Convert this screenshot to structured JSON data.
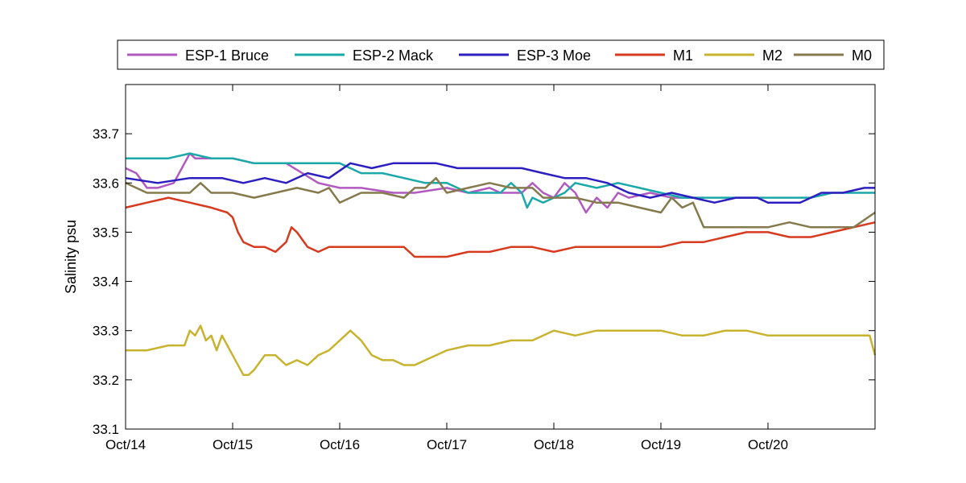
{
  "chart_data": {
    "type": "line",
    "title": "",
    "xlabel": "",
    "ylabel": "Salinity psu",
    "xlim": [
      0,
      7.0
    ],
    "ylim": [
      33.1,
      33.8
    ],
    "x_ticks": [
      {
        "value": 0,
        "label": "Oct/14"
      },
      {
        "value": 1,
        "label": "Oct/15"
      },
      {
        "value": 2,
        "label": "Oct/16"
      },
      {
        "value": 3,
        "label": "Oct/17"
      },
      {
        "value": 4,
        "label": "Oct/18"
      },
      {
        "value": 5,
        "label": "Oct/19"
      },
      {
        "value": 6,
        "label": "Oct/20"
      }
    ],
    "y_ticks": [
      {
        "value": 33.1,
        "label": "33.1"
      },
      {
        "value": 33.2,
        "label": "33.2"
      },
      {
        "value": 33.3,
        "label": "33.3"
      },
      {
        "value": 33.4,
        "label": "33.4"
      },
      {
        "value": 33.5,
        "label": "33.5"
      },
      {
        "value": 33.6,
        "label": "33.6"
      },
      {
        "value": 33.7,
        "label": "33.7"
      }
    ],
    "grid": false,
    "legend_position": "top (outside, horizontal)",
    "series": [
      {
        "name": "ESP-1 Bruce",
        "color": "#b05ac0",
        "x": [
          0.0,
          0.1,
          0.2,
          0.3,
          0.45,
          0.55,
          0.6,
          0.65,
          0.8,
          1.0,
          1.2,
          1.5,
          1.8,
          2.0,
          2.2,
          2.5,
          2.7,
          3.0,
          3.2,
          3.4,
          3.5,
          3.7,
          3.8,
          3.9,
          4.0,
          4.1,
          4.2,
          4.3,
          4.4,
          4.5,
          4.6,
          4.7,
          4.9,
          5.1,
          5.3,
          5.4
        ],
        "values": [
          33.63,
          33.62,
          33.59,
          33.59,
          33.6,
          33.64,
          33.66,
          33.65,
          33.65,
          33.65,
          33.64,
          33.64,
          33.6,
          33.59,
          33.59,
          33.58,
          33.58,
          33.59,
          33.58,
          33.59,
          33.58,
          33.58,
          33.6,
          33.58,
          33.57,
          33.6,
          33.58,
          33.54,
          33.57,
          33.55,
          33.58,
          33.57,
          33.58,
          33.57,
          33.57,
          33.57
        ]
      },
      {
        "name": "ESP-2 Mack",
        "color": "#1aa8a8",
        "x": [
          0.0,
          0.2,
          0.4,
          0.6,
          0.8,
          1.0,
          1.2,
          1.4,
          1.6,
          1.8,
          2.0,
          2.2,
          2.4,
          2.6,
          2.8,
          3.0,
          3.2,
          3.4,
          3.5,
          3.6,
          3.7,
          3.75,
          3.8,
          3.9,
          4.0,
          4.1,
          4.2,
          4.4,
          4.6,
          4.8,
          5.0,
          5.2,
          5.4,
          5.6,
          5.8,
          6.0,
          6.2,
          6.4,
          6.6,
          6.8,
          7.0
        ],
        "values": [
          33.65,
          33.65,
          33.65,
          33.66,
          33.65,
          33.65,
          33.64,
          33.64,
          33.64,
          33.64,
          33.64,
          33.62,
          33.62,
          33.61,
          33.6,
          33.6,
          33.58,
          33.58,
          33.58,
          33.6,
          33.58,
          33.55,
          33.57,
          33.56,
          33.57,
          33.58,
          33.6,
          33.59,
          33.6,
          33.59,
          33.58,
          33.57,
          33.57,
          33.57,
          33.57,
          33.57,
          33.57,
          33.57,
          33.58,
          33.58,
          33.58
        ]
      },
      {
        "name": "ESP-3 Moe",
        "color": "#2d1fbf",
        "x": [
          0.0,
          0.3,
          0.6,
          0.9,
          1.1,
          1.3,
          1.5,
          1.7,
          1.9,
          2.1,
          2.3,
          2.5,
          2.7,
          2.9,
          3.1,
          3.3,
          3.5,
          3.7,
          3.9,
          4.1,
          4.3,
          4.5,
          4.7,
          4.9,
          5.1,
          5.3,
          5.5,
          5.7,
          5.9,
          6.0,
          6.1,
          6.3,
          6.5,
          6.7,
          6.9,
          7.0
        ],
        "values": [
          33.61,
          33.6,
          33.61,
          33.61,
          33.6,
          33.61,
          33.6,
          33.62,
          33.61,
          33.64,
          33.63,
          33.64,
          33.64,
          33.64,
          33.63,
          33.63,
          33.63,
          33.63,
          33.62,
          33.61,
          33.61,
          33.6,
          33.58,
          33.57,
          33.58,
          33.57,
          33.56,
          33.57,
          33.57,
          33.56,
          33.56,
          33.56,
          33.58,
          33.58,
          33.59,
          33.59
        ]
      },
      {
        "name": "M1",
        "color": "#d63a1f",
        "x": [
          0.0,
          0.2,
          0.4,
          0.6,
          0.8,
          0.95,
          1.0,
          1.05,
          1.1,
          1.2,
          1.3,
          1.4,
          1.5,
          1.55,
          1.6,
          1.7,
          1.8,
          1.9,
          2.0,
          2.2,
          2.4,
          2.6,
          2.7,
          2.8,
          3.0,
          3.2,
          3.4,
          3.6,
          3.8,
          4.0,
          4.2,
          4.4,
          4.6,
          4.8,
          5.0,
          5.2,
          5.4,
          5.6,
          5.8,
          6.0,
          6.2,
          6.4,
          6.6,
          6.8,
          7.0
        ],
        "values": [
          33.55,
          33.56,
          33.57,
          33.56,
          33.55,
          33.54,
          33.53,
          33.5,
          33.48,
          33.47,
          33.47,
          33.46,
          33.48,
          33.51,
          33.5,
          33.47,
          33.46,
          33.47,
          33.47,
          33.47,
          33.47,
          33.47,
          33.45,
          33.45,
          33.45,
          33.46,
          33.46,
          33.47,
          33.47,
          33.46,
          33.47,
          33.47,
          33.47,
          33.47,
          33.47,
          33.48,
          33.48,
          33.49,
          33.5,
          33.5,
          33.49,
          33.49,
          33.5,
          33.51,
          33.52
        ]
      },
      {
        "name": "M2",
        "color": "#c8b32e",
        "x": [
          0.0,
          0.2,
          0.4,
          0.55,
          0.6,
          0.65,
          0.7,
          0.75,
          0.8,
          0.85,
          0.9,
          0.95,
          1.0,
          1.1,
          1.15,
          1.2,
          1.3,
          1.4,
          1.5,
          1.6,
          1.7,
          1.8,
          1.9,
          2.0,
          2.1,
          2.2,
          2.3,
          2.4,
          2.5,
          2.6,
          2.7,
          2.8,
          3.0,
          3.2,
          3.4,
          3.6,
          3.8,
          4.0,
          4.2,
          4.4,
          4.6,
          4.8,
          5.0,
          5.2,
          5.4,
          5.6,
          5.8,
          6.0,
          6.2,
          6.4,
          6.6,
          6.8,
          6.95,
          7.0
        ],
        "values": [
          33.26,
          33.26,
          33.27,
          33.27,
          33.3,
          33.29,
          33.31,
          33.28,
          33.29,
          33.26,
          33.29,
          33.27,
          33.25,
          33.21,
          33.21,
          33.22,
          33.25,
          33.25,
          33.23,
          33.24,
          33.23,
          33.25,
          33.26,
          33.28,
          33.3,
          33.28,
          33.25,
          33.24,
          33.24,
          33.23,
          33.23,
          33.24,
          33.26,
          33.27,
          33.27,
          33.28,
          33.28,
          33.3,
          33.29,
          33.3,
          33.3,
          33.3,
          33.3,
          33.29,
          33.29,
          33.3,
          33.3,
          33.29,
          33.29,
          33.29,
          33.29,
          33.29,
          33.29,
          33.25
        ]
      },
      {
        "name": "M0",
        "color": "#857a4d",
        "x": [
          0.0,
          0.1,
          0.2,
          0.4,
          0.6,
          0.7,
          0.8,
          1.0,
          1.2,
          1.4,
          1.6,
          1.8,
          1.9,
          2.0,
          2.2,
          2.4,
          2.6,
          2.7,
          2.8,
          2.9,
          3.0,
          3.2,
          3.4,
          3.6,
          3.8,
          3.9,
          4.0,
          4.2,
          4.4,
          4.6,
          4.8,
          5.0,
          5.1,
          5.2,
          5.3,
          5.4,
          5.6,
          5.8,
          6.0,
          6.2,
          6.4,
          6.6,
          6.8,
          7.0
        ],
        "values": [
          33.6,
          33.59,
          33.58,
          33.58,
          33.58,
          33.6,
          33.58,
          33.58,
          33.57,
          33.58,
          33.59,
          33.58,
          33.59,
          33.56,
          33.58,
          33.58,
          33.57,
          33.59,
          33.59,
          33.61,
          33.58,
          33.59,
          33.6,
          33.59,
          33.59,
          33.57,
          33.57,
          33.57,
          33.56,
          33.56,
          33.55,
          33.54,
          33.57,
          33.55,
          33.56,
          33.51,
          33.51,
          33.51,
          33.51,
          33.52,
          33.51,
          33.51,
          33.51,
          33.54
        ]
      }
    ]
  }
}
